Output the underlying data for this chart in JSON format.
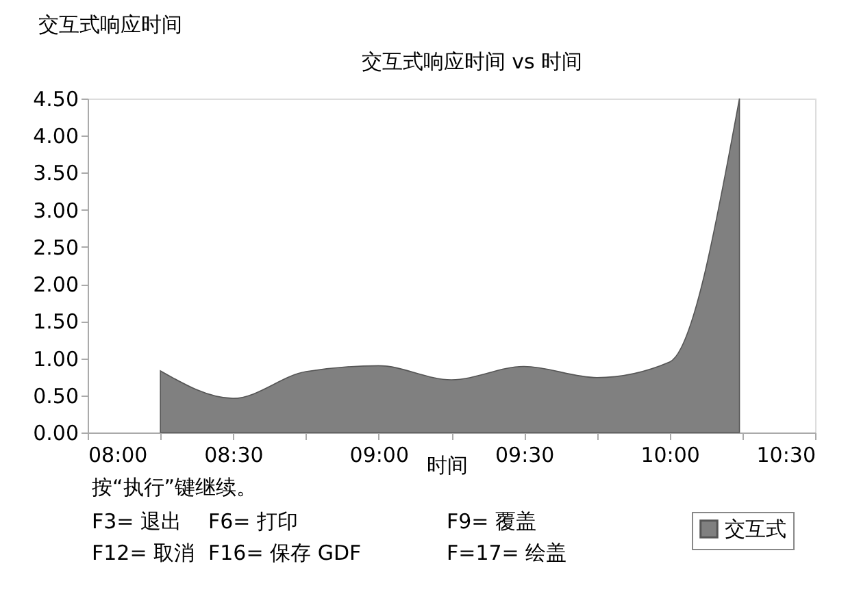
{
  "chart_data": {
    "type": "area",
    "title": "交互式响应时间 vs  时间",
    "ylabel": "交互式响应时间",
    "xlabel": "时间",
    "x": [
      8.25,
      8.5,
      8.75,
      9.0,
      9.25,
      9.5,
      9.75,
      10.0,
      10.24
    ],
    "series": [
      {
        "name": "交互式",
        "color": "#808080",
        "values": [
          0.83,
          0.46,
          0.82,
          0.9,
          0.71,
          0.89,
          0.74,
          0.95,
          4.5
        ]
      }
    ],
    "xlim": [
      8.0,
      10.5
    ],
    "xticks": [
      {
        "value": 8.0,
        "label": "08:00"
      },
      {
        "value": 8.25,
        "label": null
      },
      {
        "value": 8.5,
        "label": "08:30"
      },
      {
        "value": 8.75,
        "label": null
      },
      {
        "value": 9.0,
        "label": "09:00"
      },
      {
        "value": 9.25,
        "label": null
      },
      {
        "value": 9.5,
        "label": "09:30"
      },
      {
        "value": 9.75,
        "label": null
      },
      {
        "value": 10.0,
        "label": "10:00"
      },
      {
        "value": 10.25,
        "label": null
      },
      {
        "value": 10.5,
        "label": "10:30"
      }
    ],
    "ylim": [
      0,
      4.5
    ],
    "yticks": [
      {
        "value": 0,
        "label": "0.00"
      },
      {
        "value": 0.5,
        "label": "0.50"
      },
      {
        "value": 1,
        "label": "1.00"
      },
      {
        "value": 1.5,
        "label": "1.50"
      },
      {
        "value": 2,
        "label": "2.00"
      },
      {
        "value": 2.5,
        "label": "2.50"
      },
      {
        "value": 3,
        "label": "3.00"
      },
      {
        "value": 3.5,
        "label": "3.50"
      },
      {
        "value": 4,
        "label": "4.00"
      },
      {
        "value": 4.5,
        "label": "4.50"
      }
    ],
    "grid": false,
    "legend": "bottom right",
    "annotations": [
      "按“执行”键继续。",
      "F3= 退出",
      "F6= 打印",
      "F9= 覆盖",
      "F12= 取消",
      "F16= 保存 GDF",
      "F=17= 绘盖"
    ]
  }
}
